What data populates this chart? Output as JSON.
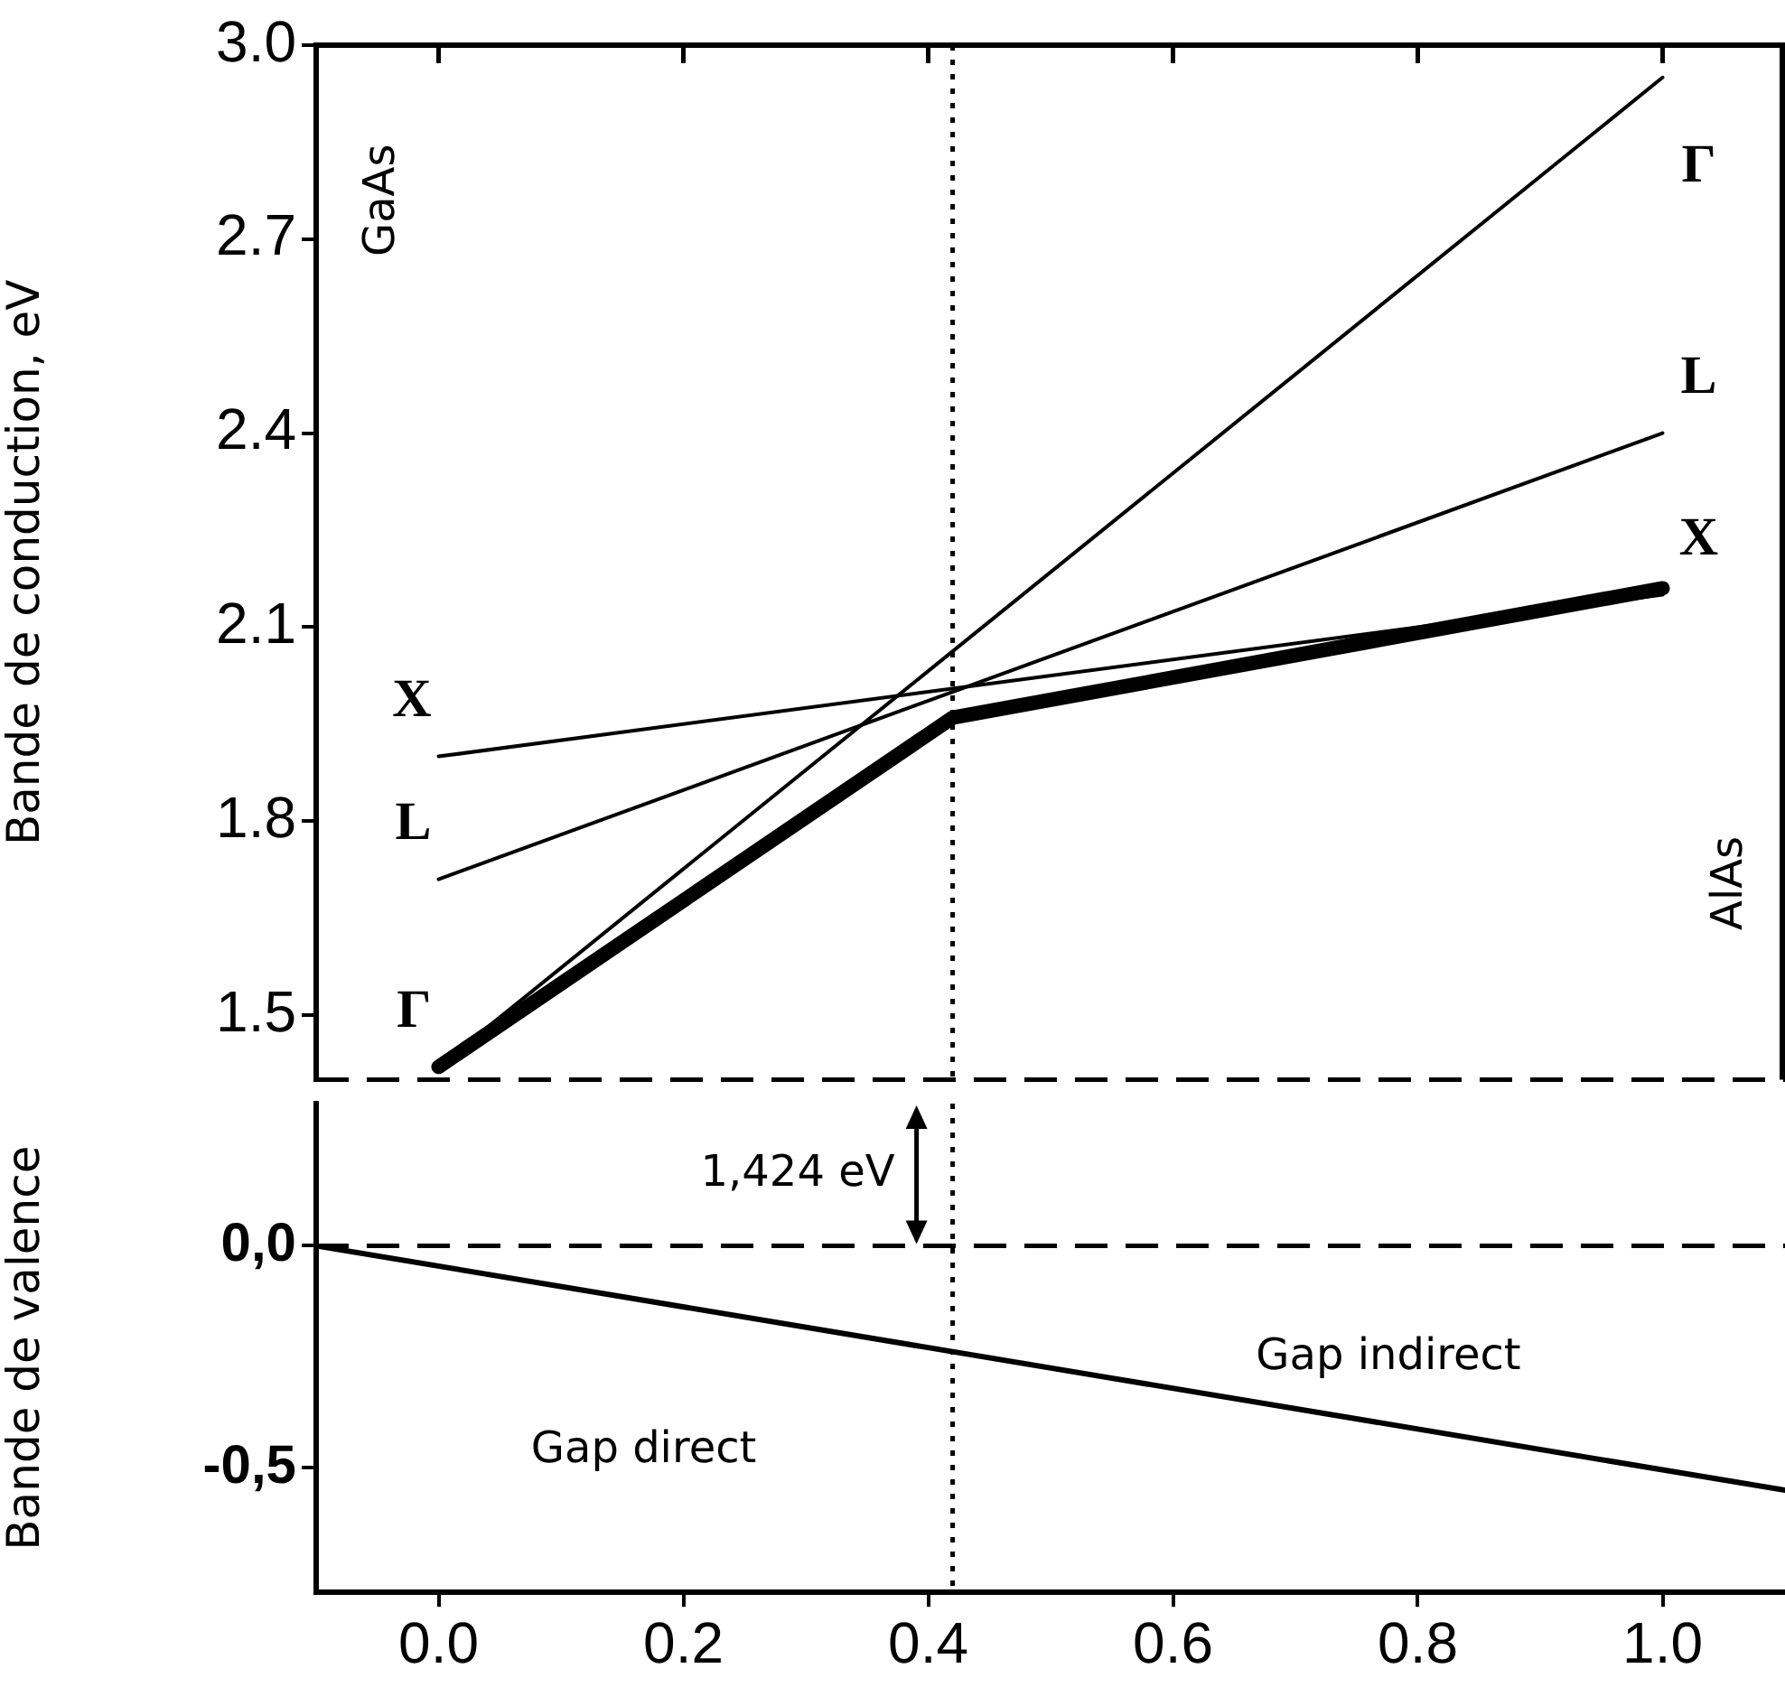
{
  "chart_data": [
    {
      "type": "line",
      "ylabel": "Bande de conduction, eV",
      "xlim": [
        -0.1,
        1.1
      ],
      "xticks": [
        0,
        0.2,
        0.4,
        0.6,
        0.8,
        1
      ],
      "ylim": [
        1.4,
        3.0
      ],
      "yticks": [
        1.5,
        1.8,
        2.1,
        2.4,
        2.7,
        {
          "value": 3,
          "label": "3.0"
        }
      ],
      "series": [
        {
          "name": "Γ",
          "color": "#000000",
          "x": [
            0,
            1
          ],
          "values": [
            1.42,
            2.95
          ]
        },
        {
          "name": "L",
          "color": "#000000",
          "x": [
            0,
            1
          ],
          "values": [
            1.71,
            2.4
          ]
        },
        {
          "name": "X",
          "color": "#000000",
          "x": [
            0,
            1
          ],
          "values": [
            1.9,
            2.15
          ]
        },
        {
          "color": "#000000",
          "x": [
            0,
            0.42,
            1
          ],
          "values": [
            1.42,
            1.96,
            2.16
          ]
        }
      ],
      "ref_lines": [
        {
          "axis": "y",
          "value": 1.4,
          "line_style": "dashed"
        },
        {
          "axis": "x",
          "value": 0.42,
          "line_style": "dotted"
        }
      ],
      "annotations": [
        "GaAs",
        "AlAs"
      ],
      "marker": "none",
      "line_style": "solid",
      "tick_labels": "y",
      "grid": false,
      "legend": false
    },
    {
      "type": "line",
      "ylabel": "Bande de valence",
      "xlim": [
        -0.1,
        1.1
      ],
      "xticks": [
        {
          "value": 0,
          "label": "0.0"
        },
        0.2,
        0.4,
        0.6,
        0.8,
        {
          "value": 1,
          "label": "1.0"
        }
      ],
      "ylim": [
        -0.78,
        0.32
      ],
      "yticks": [
        {
          "value": 0,
          "label": "0,0"
        },
        {
          "value": -0.5,
          "label": "-0,5"
        }
      ],
      "series": [
        {
          "color": "#000000",
          "x": [
            -0.1,
            1.1
          ],
          "values": [
            0.0,
            -0.55
          ]
        }
      ],
      "ref_lines": [
        {
          "axis": "y",
          "value": 0,
          "line_style": "dashed"
        },
        {
          "axis": "x",
          "value": 0.42,
          "line_style": "dotted"
        }
      ],
      "annotations": [
        "1,424 eV",
        "Gap direct",
        "Gap indirect"
      ],
      "marker": "none",
      "line_style": "solid",
      "grid": false,
      "legend": false
    }
  ]
}
